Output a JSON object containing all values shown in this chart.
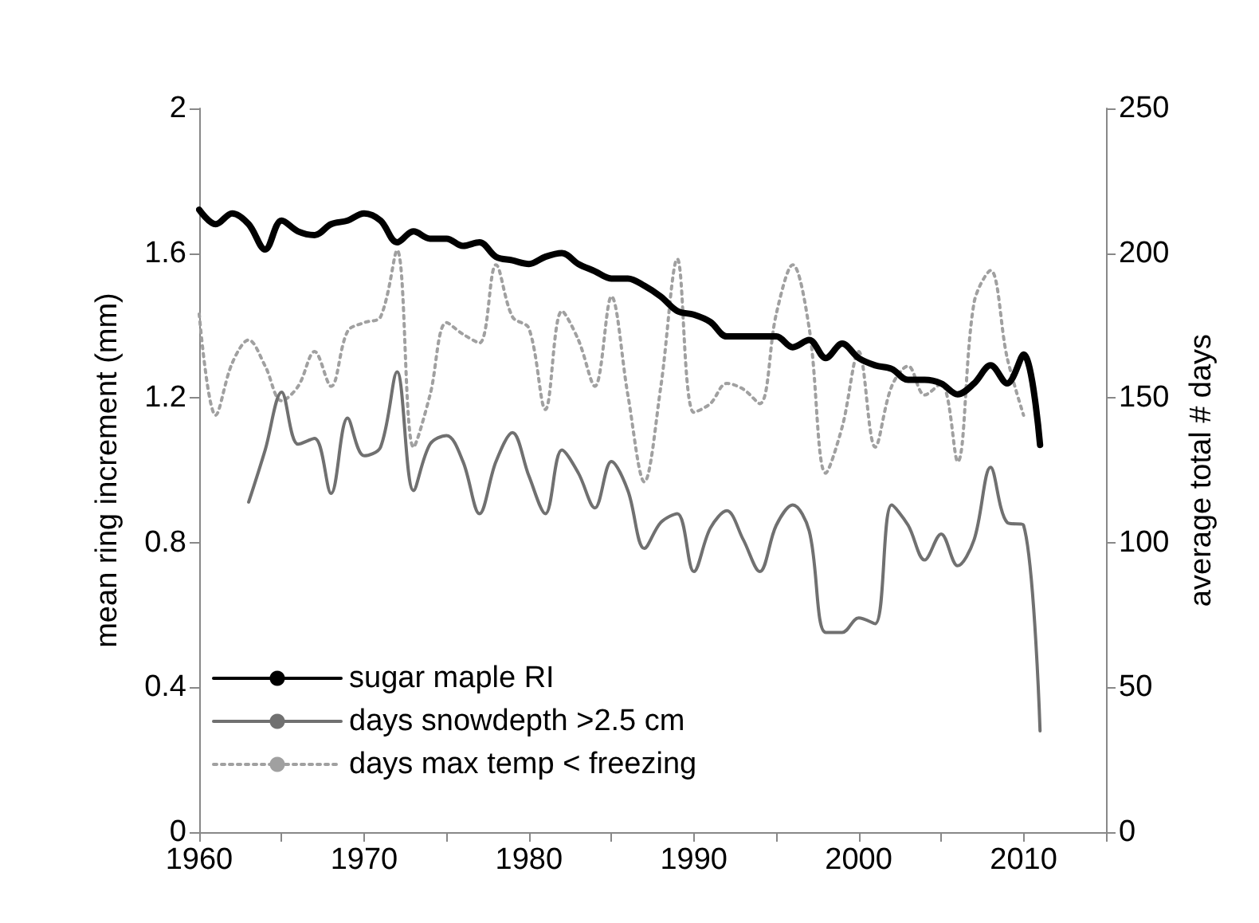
{
  "chart_data": {
    "type": "line",
    "ylabel": "mean ring increment (mm)",
    "y2label": "average total # days",
    "xlim": [
      1960,
      2015
    ],
    "xticks": [
      1960,
      {
        "value": 1965,
        "label": null
      },
      1970,
      {
        "value": 1975,
        "label": null
      },
      1980,
      {
        "value": 1985,
        "label": null
      },
      1990,
      {
        "value": 1995,
        "label": null
      },
      2000,
      {
        "value": 2005,
        "label": null
      },
      2010,
      {
        "value": 2015,
        "label": null
      }
    ],
    "ylim": [
      0,
      2
    ],
    "yticks": [
      0,
      0.4,
      0.8,
      1.2,
      1.6,
      2
    ],
    "y2lim": [
      0,
      250
    ],
    "y2ticks": [
      0,
      50,
      100,
      150,
      200,
      250
    ],
    "grid": false,
    "legend": "bottom left",
    "marker": "none",
    "series": [
      {
        "name": "sugar maple RI",
        "color": "#000000",
        "line_style": "solid",
        "x": [
          1960,
          1961,
          1962,
          1963,
          1964,
          1965,
          1966,
          1967,
          1968,
          1969,
          1970,
          1971,
          1972,
          1973,
          1974,
          1975,
          1976,
          1977,
          1978,
          1979,
          1980,
          1981,
          1982,
          1983,
          1984,
          1985,
          1986,
          1987,
          1988,
          1989,
          1990,
          1991,
          1992,
          1993,
          1994,
          1995,
          1996,
          1997,
          1998,
          1999,
          2000,
          2001,
          2002,
          2003,
          2004,
          2005,
          2006,
          2007,
          2008,
          2009,
          2010,
          2011
        ],
        "values": [
          1.72,
          1.68,
          1.71,
          1.68,
          1.61,
          1.69,
          1.66,
          1.65,
          1.68,
          1.69,
          1.71,
          1.69,
          1.63,
          1.66,
          1.64,
          1.64,
          1.62,
          1.63,
          1.59,
          1.58,
          1.57,
          1.59,
          1.6,
          1.57,
          1.55,
          1.53,
          1.53,
          1.51,
          1.48,
          1.44,
          1.43,
          1.41,
          1.37,
          1.37,
          1.37,
          1.37,
          1.34,
          1.36,
          1.31,
          1.35,
          1.31,
          1.29,
          1.28,
          1.25,
          1.25,
          1.24,
          1.21,
          1.24,
          1.29,
          1.24,
          1.32,
          1.07
        ]
      },
      {
        "name": "days snowdepth >2.5 cm",
        "color": "#707070",
        "line_style": "solid",
        "axis": "y2",
        "x": [
          1963,
          1964,
          1965,
          1966,
          1967,
          1968,
          1969,
          1970,
          1971,
          1972,
          1973,
          1974,
          1975,
          1976,
          1977,
          1978,
          1979,
          1980,
          1981,
          1982,
          1983,
          1984,
          1985,
          1986,
          1987,
          1988,
          1989,
          1990,
          1991,
          1992,
          1993,
          1994,
          1995,
          1996,
          1997,
          1998,
          1999,
          2000,
          2001,
          2002,
          2003,
          2004,
          2005,
          2006,
          2007,
          2008,
          2009,
          2010,
          2011
        ],
        "values": [
          114,
          132,
          152,
          134,
          136,
          117,
          143,
          130,
          133,
          159,
          118,
          134,
          137,
          128,
          110,
          128,
          138,
          123,
          110,
          132,
          124,
          112,
          128,
          118,
          98,
          107,
          110,
          90,
          105,
          111,
          101,
          90,
          106,
          113,
          104,
          69,
          69,
          74,
          72,
          113,
          106,
          94,
          103,
          92,
          101,
          126,
          107,
          106,
          35
        ]
      },
      {
        "name": "days max temp < freezing",
        "color": "#a0a0a0",
        "line_style": "dotted",
        "axis": "y2",
        "x": [
          1960,
          1961,
          1962,
          1963,
          1964,
          1965,
          1966,
          1967,
          1968,
          1969,
          1970,
          1971,
          1972,
          1973,
          1974,
          1975,
          1976,
          1977,
          1978,
          1979,
          1980,
          1981,
          1982,
          1983,
          1984,
          1985,
          1986,
          1987,
          1988,
          1989,
          1990,
          1991,
          1992,
          1993,
          1994,
          1995,
          1996,
          1997,
          1998,
          1999,
          2000,
          2001,
          2002,
          2003,
          2004,
          2005,
          2006,
          2007,
          2008,
          2009,
          2010
        ],
        "values": [
          179,
          144,
          162,
          170,
          161,
          149,
          154,
          166,
          154,
          173,
          176,
          178,
          201,
          133,
          151,
          176,
          172,
          169,
          196,
          178,
          174,
          146,
          180,
          170,
          154,
          185,
          151,
          121,
          154,
          198,
          145,
          148,
          155,
          153,
          148,
          179,
          196,
          174,
          124,
          140,
          166,
          133,
          154,
          161,
          151,
          155,
          128,
          183,
          194,
          164,
          144
        ]
      }
    ]
  }
}
